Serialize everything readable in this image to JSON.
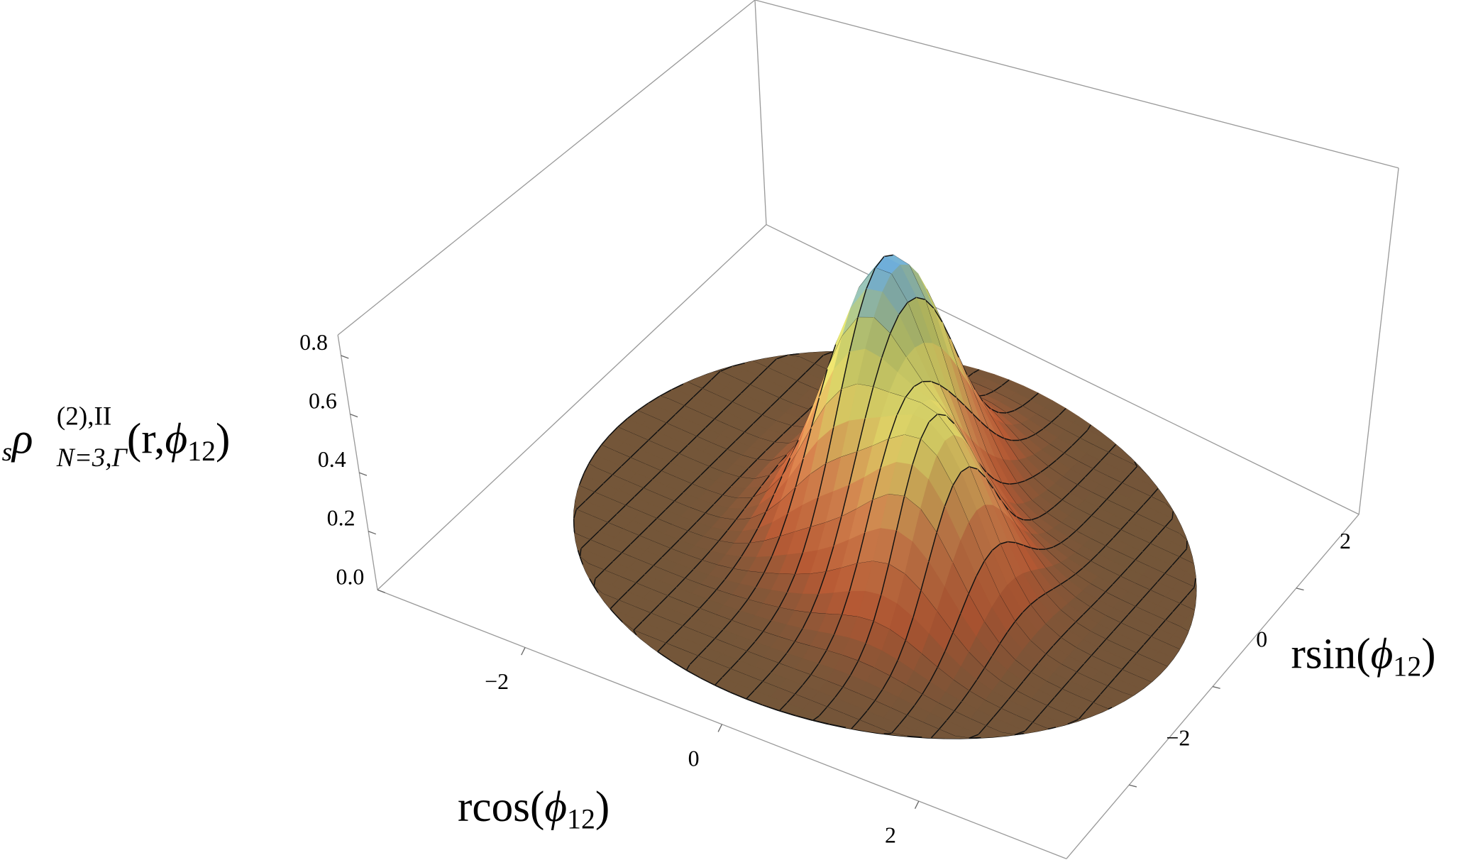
{
  "chart_data": {
    "type": "surface",
    "zlabel": [
      "s",
      "ρ",
      "(2),II",
      "N=3,Γ",
      "(r,",
      "ϕ",
      "12",
      ")"
    ],
    "xlabel": [
      "rcos(",
      "ϕ",
      "12",
      ")"
    ],
    "ylabel": [
      "rsin(",
      "ϕ",
      "12",
      ")"
    ],
    "xlim": [
      -3.5,
      3.5
    ],
    "ylim": [
      -3.5,
      3.5
    ],
    "zlim": [
      0,
      0.87
    ],
    "xticks": [
      {
        "value": -2,
        "label": "−2"
      },
      0,
      2
    ],
    "yticks": [
      {
        "value": -2,
        "label": "−2"
      },
      0,
      2
    ],
    "zticks": [
      {
        "value": 0,
        "label": "0.0"
      },
      0.2,
      0.4,
      0.6,
      0.8
    ]
  }
}
